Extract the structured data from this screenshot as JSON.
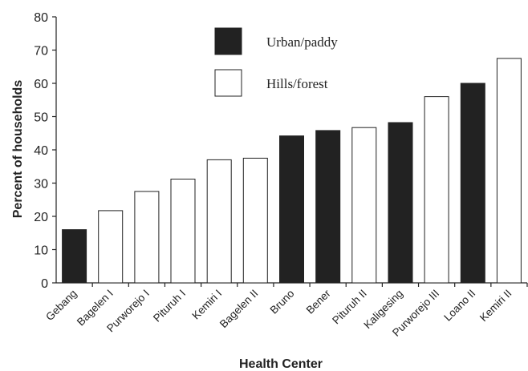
{
  "chart_data": {
    "type": "bar",
    "title": "",
    "xlabel": "Health Center",
    "ylabel": "Percent of households",
    "ylim": [
      0,
      80
    ],
    "yticks": [
      0,
      10,
      20,
      30,
      40,
      50,
      60,
      70,
      80
    ],
    "grid": false,
    "legend_position": "top-center",
    "legend": [
      {
        "name": "Urban/paddy",
        "color": "#222222"
      },
      {
        "name": "Hills/forest",
        "color": "#ffffff"
      }
    ],
    "categories": [
      "Gebang",
      "Bagelen I",
      "Purworejo I",
      "Pituruh I",
      "Kemiri I",
      "Bagelen II",
      "Bruno",
      "Bener",
      "Pituruh II",
      "Kaligesing",
      "Purworejo III",
      "Loano II",
      "Kemiri II"
    ],
    "values": [
      16,
      21.7,
      27.5,
      31.2,
      37,
      37.5,
      44.2,
      45.8,
      46.7,
      48.2,
      56,
      60,
      67.5
    ],
    "groups": [
      "Urban/paddy",
      "Hills/forest",
      "Hills/forest",
      "Hills/forest",
      "Hills/forest",
      "Hills/forest",
      "Urban/paddy",
      "Urban/paddy",
      "Hills/forest",
      "Urban/paddy",
      "Hills/forest",
      "Urban/paddy",
      "Hills/forest"
    ]
  }
}
